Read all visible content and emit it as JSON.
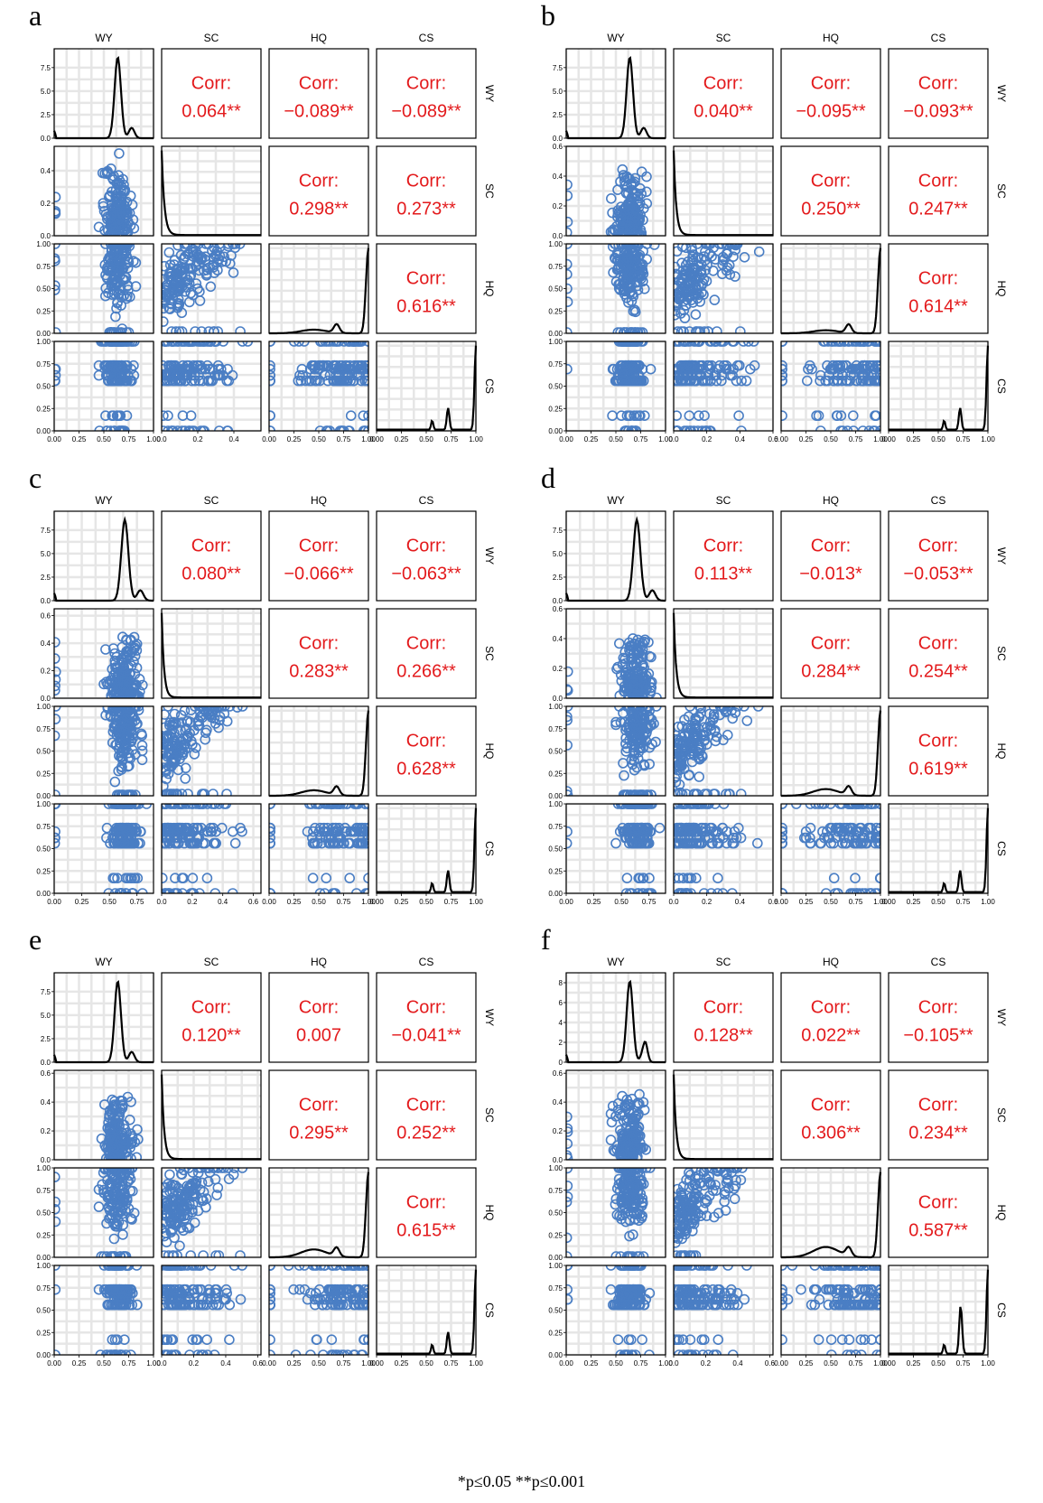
{
  "variables": [
    "WY",
    "SC",
    "HQ",
    "CS"
  ],
  "footnote": "*p≤0.05    **p≤0.001",
  "colors": {
    "scatter": "#4a7ec4",
    "corr_text": "#e31a1c",
    "density_line": "#000000",
    "grid": "#e6e6e6"
  },
  "chart_data": [
    {
      "type": "scatter",
      "panel": "a",
      "corr_label": "Corr:",
      "correlations": {
        "WY-SC": "0.064**",
        "WY-HQ": "−0.089**",
        "WY-CS": "−0.089**",
        "SC-HQ": "0.298**",
        "SC-CS": "0.273**",
        "HQ-CS": "0.616**"
      },
      "x_ticks": {
        "WY": [
          "0.00",
          "0.25",
          "0.50",
          "0.75",
          "1.00"
        ],
        "SC": [
          "0.0",
          "0.2",
          "0.4"
        ],
        "HQ": [
          "0.00",
          "0.25",
          "0.50",
          "0.75",
          "1.00"
        ],
        "CS": [
          "0.00",
          "0.25",
          "0.50",
          "0.75",
          "1.00"
        ]
      },
      "y_ticks": {
        "WY": [
          "0.0",
          "2.5",
          "5.0",
          "7.5"
        ],
        "SC": [
          "0.0",
          "0.2",
          "0.4"
        ],
        "HQ": [
          "0.00",
          "0.25",
          "0.50",
          "0.75",
          "1.00"
        ],
        "CS": [
          "0.00",
          "0.25",
          "0.50",
          "0.75",
          "1.00"
        ]
      },
      "ranges": {
        "WY": [
          0,
          1
        ],
        "SC": [
          0,
          0.55
        ],
        "HQ": [
          0,
          1
        ],
        "CS": [
          0,
          1
        ],
        "WY_density": [
          0,
          9.5
        ]
      }
    },
    {
      "type": "scatter",
      "panel": "b",
      "corr_label": "Corr:",
      "correlations": {
        "WY-SC": "0.040**",
        "WY-HQ": "−0.095**",
        "WY-CS": "−0.093**",
        "SC-HQ": "0.250**",
        "SC-CS": "0.247**",
        "HQ-CS": "0.614**"
      },
      "x_ticks": {
        "WY": [
          "0.00",
          "0.25",
          "0.50",
          "0.75",
          "1.00"
        ],
        "SC": [
          "0.0",
          "0.2",
          "0.4",
          "0.6"
        ],
        "HQ": [
          "0.00",
          "0.25",
          "0.50",
          "0.75",
          "1.00"
        ],
        "CS": [
          "0.00",
          "0.25",
          "0.50",
          "0.75",
          "1.00"
        ]
      },
      "y_ticks": {
        "WY": [
          "0.0",
          "2.5",
          "5.0",
          "7.5"
        ],
        "SC": [
          "0.0",
          "0.2",
          "0.4",
          "0.6"
        ],
        "HQ": [
          "0.00",
          "0.25",
          "0.50",
          "0.75",
          "1.00"
        ],
        "CS": [
          "0.00",
          "0.25",
          "0.50",
          "0.75",
          "1.00"
        ]
      },
      "ranges": {
        "WY": [
          0,
          1
        ],
        "SC": [
          0,
          0.6
        ],
        "HQ": [
          0,
          1
        ],
        "CS": [
          0,
          1
        ],
        "WY_density": [
          0,
          9.5
        ]
      }
    },
    {
      "type": "scatter",
      "panel": "c",
      "corr_label": "Corr:",
      "correlations": {
        "WY-SC": "0.080**",
        "WY-HQ": "−0.066**",
        "WY-CS": "−0.063**",
        "SC-HQ": "0.283**",
        "SC-CS": "0.266**",
        "HQ-CS": "0.628**"
      },
      "x_ticks": {
        "WY": [
          "0.00",
          "0.25",
          "0.50",
          "0.75"
        ],
        "SC": [
          "0.0",
          "0.2",
          "0.4",
          "0.6"
        ],
        "HQ": [
          "0.00",
          "0.25",
          "0.50",
          "0.75",
          "1.00"
        ],
        "CS": [
          "0.00",
          "0.25",
          "0.50",
          "0.75",
          "1.00"
        ]
      },
      "y_ticks": {
        "WY": [
          "0.0",
          "2.5",
          "5.0",
          "7.5"
        ],
        "SC": [
          "0.0",
          "0.2",
          "0.4",
          "0.6"
        ],
        "HQ": [
          "0.00",
          "0.25",
          "0.50",
          "0.75",
          "1.00"
        ],
        "CS": [
          "0.00",
          "0.25",
          "0.50",
          "0.75",
          "1.00"
        ]
      },
      "ranges": {
        "WY": [
          0,
          0.9
        ],
        "SC": [
          0,
          0.65
        ],
        "HQ": [
          0,
          1
        ],
        "CS": [
          0,
          1
        ],
        "WY_density": [
          0,
          9.5
        ]
      }
    },
    {
      "type": "scatter",
      "panel": "d",
      "corr_label": "Corr:",
      "correlations": {
        "WY-SC": "0.113**",
        "WY-HQ": "−0.013*",
        "WY-CS": "−0.053**",
        "SC-HQ": "0.284**",
        "SC-CS": "0.254**",
        "HQ-CS": "0.619**"
      },
      "x_ticks": {
        "WY": [
          "0.00",
          "0.25",
          "0.50",
          "0.75"
        ],
        "SC": [
          "0.0",
          "0.2",
          "0.4",
          "0.6"
        ],
        "HQ": [
          "0.00",
          "0.25",
          "0.50",
          "0.75",
          "1.00"
        ],
        "CS": [
          "0.00",
          "0.25",
          "0.50",
          "0.75",
          "1.00"
        ]
      },
      "y_ticks": {
        "WY": [
          "0.0",
          "2.5",
          "5.0",
          "7.5"
        ],
        "SC": [
          "0.0",
          "0.2",
          "0.4",
          "0.6"
        ],
        "HQ": [
          "0.00",
          "0.25",
          "0.50",
          "0.75",
          "1.00"
        ],
        "CS": [
          "0.00",
          "0.25",
          "0.50",
          "0.75",
          "1.00"
        ]
      },
      "ranges": {
        "WY": [
          0,
          0.9
        ],
        "SC": [
          0,
          0.6
        ],
        "HQ": [
          0,
          1
        ],
        "CS": [
          0,
          1
        ],
        "WY_density": [
          0,
          9.5
        ]
      }
    },
    {
      "type": "scatter",
      "panel": "e",
      "corr_label": "Corr:",
      "correlations": {
        "WY-SC": "0.120**",
        "WY-HQ": "0.007",
        "WY-CS": "−0.041**",
        "SC-HQ": "0.295**",
        "SC-CS": "0.252**",
        "HQ-CS": "0.615**"
      },
      "x_ticks": {
        "WY": [
          "0.00",
          "0.25",
          "0.50",
          "0.75",
          "1.00"
        ],
        "SC": [
          "0.0",
          "0.2",
          "0.4",
          "0.6"
        ],
        "HQ": [
          "0.00",
          "0.25",
          "0.50",
          "0.75",
          "1.00"
        ],
        "CS": [
          "0.00",
          "0.25",
          "0.50",
          "0.75",
          "1.00"
        ]
      },
      "y_ticks": {
        "WY": [
          "0.0",
          "2.5",
          "5.0",
          "7.5"
        ],
        "SC": [
          "0.0",
          "0.2",
          "0.4",
          "0.6"
        ],
        "HQ": [
          "0.00",
          "0.25",
          "0.50",
          "0.75",
          "1.00"
        ],
        "CS": [
          "0.00",
          "0.25",
          "0.50",
          "0.75",
          "1.00"
        ]
      },
      "ranges": {
        "WY": [
          0,
          1
        ],
        "SC": [
          0,
          0.62
        ],
        "HQ": [
          0,
          1
        ],
        "CS": [
          0,
          1
        ],
        "WY_density": [
          0,
          9.5
        ]
      }
    },
    {
      "type": "scatter",
      "panel": "f",
      "corr_label": "Corr:",
      "correlations": {
        "WY-SC": "0.128**",
        "WY-HQ": "0.022**",
        "WY-CS": "−0.105**",
        "SC-HQ": "0.306**",
        "SC-CS": "0.234**",
        "HQ-CS": "0.587**"
      },
      "x_ticks": {
        "WY": [
          "0.00",
          "0.25",
          "0.50",
          "0.75",
          "1.00"
        ],
        "SC": [
          "0.0",
          "0.2",
          "0.4",
          "0.6"
        ],
        "HQ": [
          "0.00",
          "0.25",
          "0.50",
          "0.75",
          "1.00"
        ],
        "CS": [
          "0.00",
          "0.25",
          "0.50",
          "0.75",
          "1.00"
        ]
      },
      "y_ticks": {
        "WY": [
          "0",
          "2",
          "4",
          "6",
          "8"
        ],
        "SC": [
          "0.0",
          "0.2",
          "0.4",
          "0.6"
        ],
        "HQ": [
          "0.00",
          "0.25",
          "0.50",
          "0.75",
          "1.00"
        ],
        "CS": [
          "0.00",
          "0.25",
          "0.50",
          "0.75",
          "1.00"
        ]
      },
      "ranges": {
        "WY": [
          0,
          1
        ],
        "SC": [
          0,
          0.62
        ],
        "HQ": [
          0,
          1
        ],
        "CS": [
          0,
          1
        ],
        "WY_density": [
          0,
          9
        ]
      }
    }
  ]
}
